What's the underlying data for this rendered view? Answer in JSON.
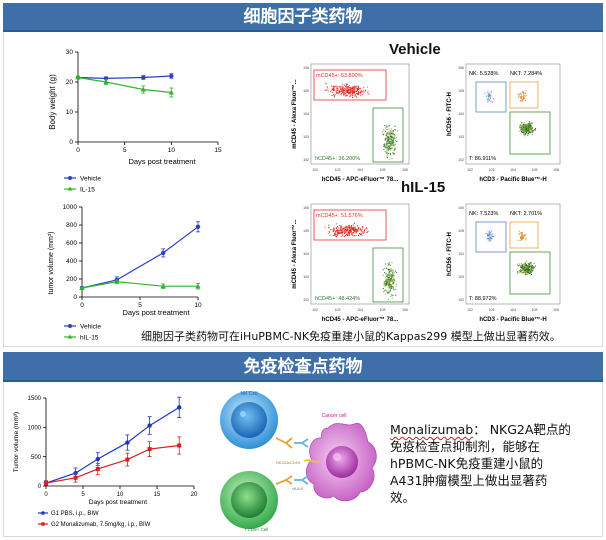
{
  "section1": {
    "banner": "细胞因子类药物",
    "weight_chart": {
      "ylabel": "Body weight (g)",
      "xlabel": "Days post treatment",
      "yticks": [
        "0",
        "10",
        "20",
        "30"
      ],
      "xticks": [
        "0",
        "5",
        "10",
        "15"
      ],
      "legend": [
        "Vehicle",
        "IL-15"
      ]
    },
    "tumor_chart": {
      "ylabel": "tumor volume (mm³)",
      "xlabel": "Days post treatment",
      "yticks": [
        "0",
        "200",
        "400",
        "600",
        "800",
        "1000"
      ],
      "xticks": [
        "0",
        "5",
        "10"
      ],
      "legend": [
        "Vehicle",
        "hIL-15"
      ]
    },
    "vehicle_title": "Vehicle",
    "il15_title": "hIL-15",
    "flow": {
      "v1": {
        "gate_top": "mCD45+: 63.800%",
        "gate_bottom": "hCD45+: 36.200%",
        "xlabel": "hCD45 - APC-eFluor™ 78...",
        "ylabel": "mCD45 - Alexa Fluor™..."
      },
      "v2": {
        "nk": "NK: 5.528%",
        "nkt": "NKT: 7.284%",
        "t": "T: 86.911%",
        "xlabel": "hCD3 - Pacific Blue™-H",
        "ylabel": "hCD56 - FITC-H"
      },
      "i1": {
        "gate_top": "mCD45+: 51.576%",
        "gate_bottom": "hCD45+: 48.424%",
        "xlabel": "hCD45 - APC-eFluor™ 78...",
        "ylabel": "mCD45 - Alexa Fluor™..."
      },
      "i2": {
        "nk": "NK: 7.523%",
        "nkt": "NKT: 2.701%",
        "t": "T: 88.972%",
        "xlabel": "hCD3 - Pacific Blue™-H",
        "ylabel": "hCD56 - FITC-H"
      }
    },
    "caption": "细胞因子类药物可在iHuPBMC-NK免疫重建小鼠的Kappas299 模型上做出显著药效。"
  },
  "section2": {
    "banner": "免疫检查点药物",
    "chart": {
      "ylabel": "Tumor volume (mm³)",
      "xlabel": "Days post treatment",
      "yticks": [
        "0",
        "500",
        "1000",
        "1500"
      ],
      "xticks": [
        "0",
        "5",
        "10",
        "15",
        "20"
      ],
      "legend": [
        "G1 PBS, i.p., BIW",
        "G2 Monalizumab, 7.5mg/kg, i.p., BIW"
      ]
    },
    "diagram": {
      "nk_cell": "NK Cell",
      "cancer_cell": "Cancer cell",
      "t_cell": "T CD8+ Cell",
      "nkg2a": "NKG2A/CD94",
      "hlae": "HLA-E"
    },
    "desc_drug": "Monalizumab",
    "desc_rest": "： NKG2A靶点的免疫检查点抑制剂，能够在hPBMC-NK免疫重建小鼠的A431肿瘤模型上做出显著药效。"
  },
  "chart_data": [
    {
      "type": "line",
      "title": "",
      "xlabel": "Days post treatment",
      "ylabel": "Body weight (g)",
      "xlim": [
        0,
        15
      ],
      "ylim": [
        0,
        30
      ],
      "series": [
        {
          "name": "Vehicle",
          "color": "#2b3fc7",
          "x": [
            0,
            3,
            7,
            10
          ],
          "values": [
            21.5,
            21.2,
            21.5,
            22.0
          ]
        },
        {
          "name": "IL-15",
          "color": "#2db52d",
          "x": [
            0,
            3,
            7,
            10
          ],
          "values": [
            21.5,
            20.0,
            17.5,
            16.5
          ]
        }
      ]
    },
    {
      "type": "line",
      "title": "",
      "xlabel": "Days post treatment",
      "ylabel": "tumor volume (mm³)",
      "xlim": [
        0,
        10
      ],
      "ylim": [
        0,
        1000
      ],
      "series": [
        {
          "name": "Vehicle",
          "color": "#2b3fc7",
          "x": [
            0,
            3,
            7,
            10
          ],
          "values": [
            100,
            190,
            490,
            780
          ]
        },
        {
          "name": "hIL-15",
          "color": "#2db52d",
          "x": [
            0,
            3,
            7,
            10
          ],
          "values": [
            100,
            170,
            120,
            120
          ]
        }
      ]
    },
    {
      "type": "line",
      "title": "",
      "xlabel": "Days post treatment",
      "ylabel": "Tumor volume (mm³)",
      "xlim": [
        0,
        20
      ],
      "ylim": [
        0,
        1500
      ],
      "series": [
        {
          "name": "G1 PBS, i.p., BIW",
          "color": "#1e35c9",
          "x": [
            0,
            4,
            7,
            11,
            14,
            18
          ],
          "values": [
            50,
            220,
            460,
            740,
            1030,
            1340
          ]
        },
        {
          "name": "G2 Monalizumab, 7.5mg/kg, i.p., BIW",
          "color": "#d62020",
          "x": [
            0,
            4,
            7,
            11,
            14,
            18
          ],
          "values": [
            50,
            140,
            290,
            450,
            630,
            690
          ]
        }
      ]
    }
  ]
}
